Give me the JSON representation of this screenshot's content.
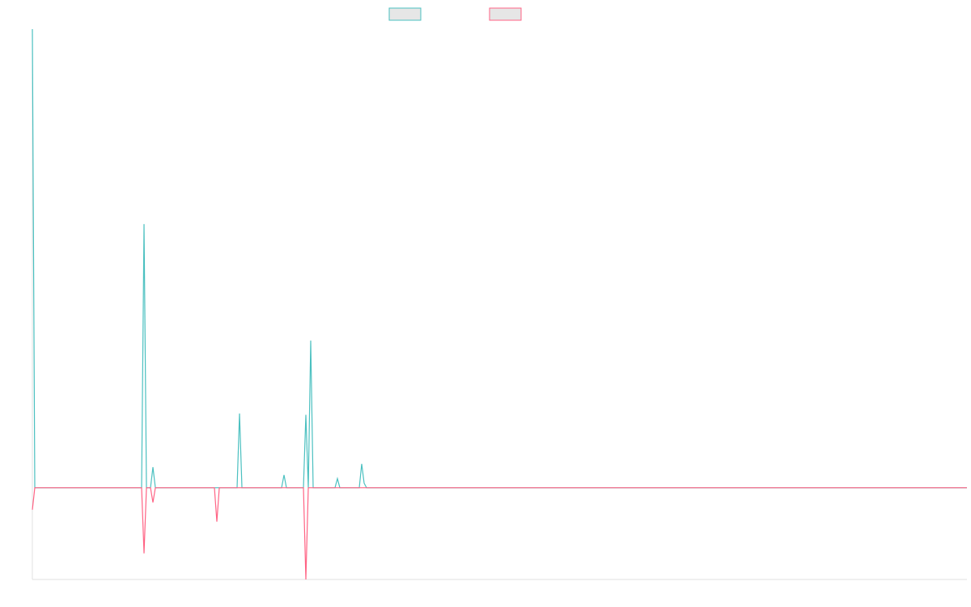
{
  "chart_data": {
    "type": "line",
    "x": [
      0,
      3,
      135,
      138,
      141,
      146,
      149,
      152,
      225,
      228,
      231,
      253,
      256,
      259,
      308,
      311,
      314,
      335,
      338,
      341,
      344,
      347,
      374,
      377,
      380,
      404,
      407,
      410,
      413,
      1155
    ],
    "xlim": [
      0,
      1155
    ],
    "ylim": [
      -20,
      100
    ],
    "series": [
      {
        "color": "#4bc0c0",
        "values": [
          100,
          0,
          0,
          57.5,
          0,
          0,
          4.5,
          0,
          0,
          0,
          0,
          0,
          16.2,
          0,
          0,
          2.8,
          0,
          0,
          15.9,
          0,
          32.1,
          0,
          0,
          2,
          0,
          0,
          5.2,
          1,
          0,
          0
        ]
      },
      {
        "color": "#ff6384",
        "values": [
          -4.8,
          0,
          0,
          -14.3,
          0,
          0,
          -3.2,
          0,
          0,
          -7.4,
          0,
          0,
          0,
          0,
          0,
          0,
          0,
          0,
          -20,
          0,
          0,
          0,
          0,
          0,
          0,
          0,
          0,
          0,
          0,
          0
        ]
      }
    ]
  }
}
